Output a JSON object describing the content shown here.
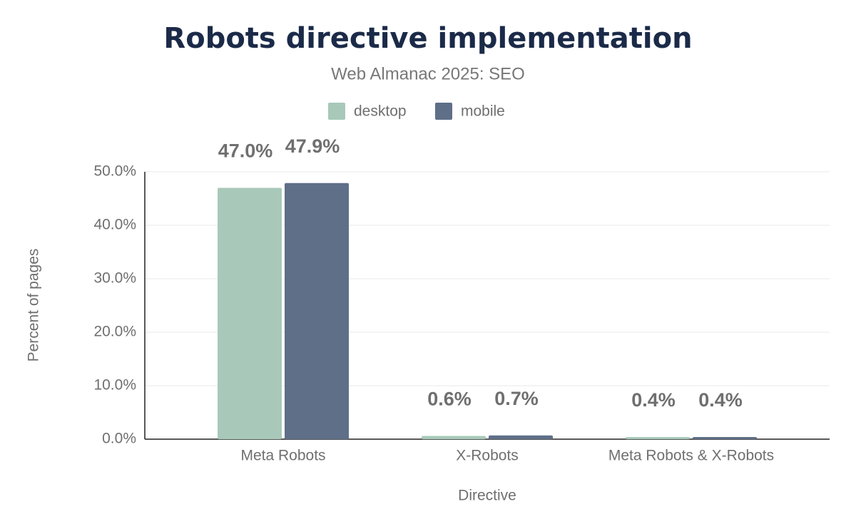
{
  "chart_data": {
    "type": "bar",
    "title": "Robots directive implementation",
    "subtitle": "Web Almanac 2025: SEO",
    "x_label": "Directive",
    "y_label": "Percent of pages",
    "categories": [
      "Meta Robots",
      "X-Robots",
      "Meta Robots & X-Robots"
    ],
    "series": [
      {
        "name": "desktop",
        "color": "#a8c9b9",
        "values": [
          47.0,
          0.6,
          0.4
        ],
        "value_labels": [
          "47.0%",
          "0.6%",
          "0.4%"
        ]
      },
      {
        "name": "mobile",
        "color": "#5f6f88",
        "values": [
          47.9,
          0.7,
          0.4
        ],
        "value_labels": [
          "47.9%",
          "0.7%",
          "0.4%"
        ]
      }
    ],
    "ylim": [
      0,
      50
    ],
    "yticks": [
      {
        "value": 0,
        "label": "0.0%"
      },
      {
        "value": 10,
        "label": "10.0%"
      },
      {
        "value": 20,
        "label": "20.0%"
      },
      {
        "value": 30,
        "label": "30.0%"
      },
      {
        "value": 40,
        "label": "40.0%"
      },
      {
        "value": 50,
        "label": "50.0%"
      }
    ],
    "grid": true,
    "legend": "top"
  }
}
